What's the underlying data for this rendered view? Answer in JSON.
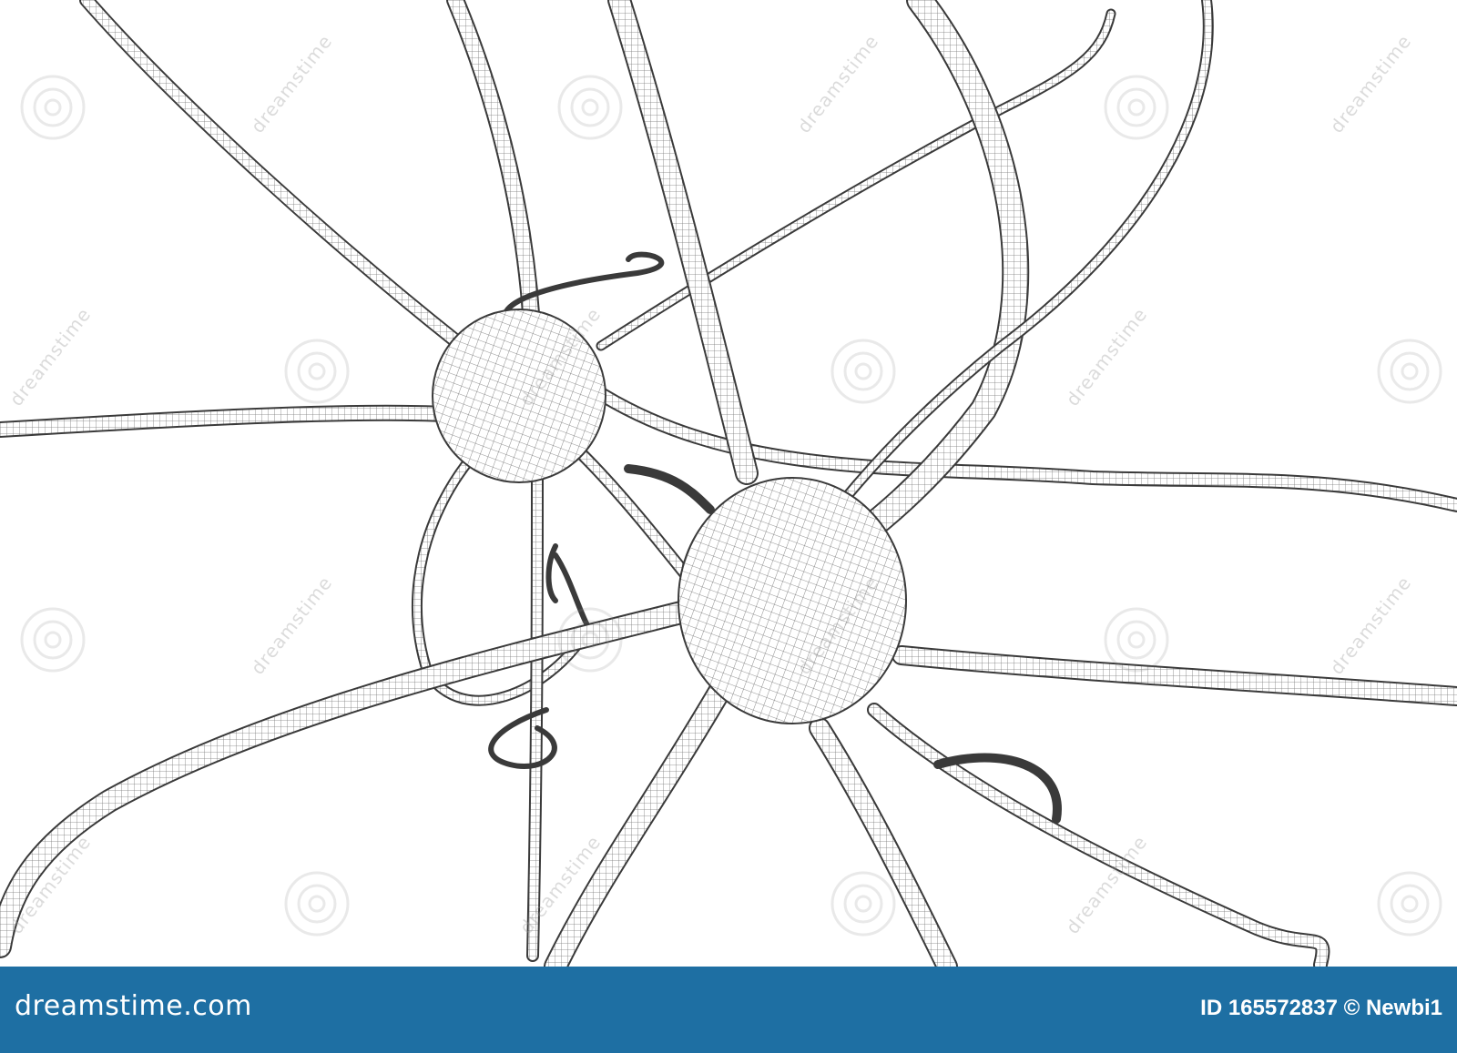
{
  "image": {
    "subject": "wireframe-neurons",
    "palette": {
      "line": "#3a3a3a",
      "mesh": "#8a8a8a",
      "background": "#ffffff"
    }
  },
  "watermark": {
    "text": "dreamstime",
    "color": "#9a9a9a"
  },
  "footer": {
    "background": "#1e6fa3",
    "site": "dreamstime.com",
    "id_text": "ID 165572837 © Newbi1"
  }
}
